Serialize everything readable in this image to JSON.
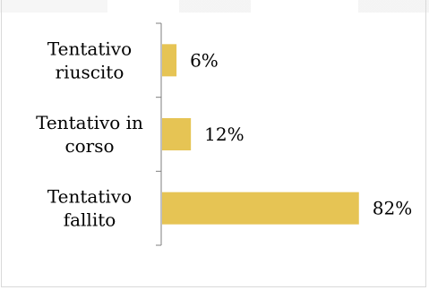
{
  "chart_data": {
    "type": "bar",
    "orientation": "horizontal",
    "categories": [
      [
        "Tentativo",
        "riuscito"
      ],
      [
        "Tentativo in",
        "corso"
      ],
      [
        "Tentativo",
        "fallito"
      ]
    ],
    "values": [
      6,
      12,
      82
    ],
    "value_labels": [
      "6%",
      "12%",
      "82%"
    ],
    "xlim": [
      0,
      100
    ],
    "grid": false,
    "legend": "none",
    "bar_color": "#e6c454",
    "axis_color": "#7f7f7f"
  }
}
